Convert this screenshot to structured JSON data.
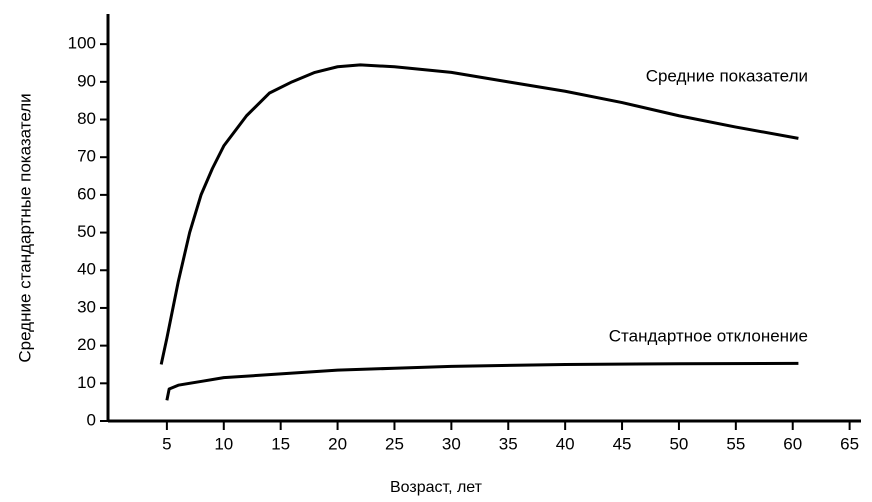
{
  "chart_data": {
    "type": "line",
    "xlabel": "Возраст,  лет",
    "ylabel": "Средние стандартные показатели",
    "xlim": [
      0,
      66
    ],
    "xticks": [
      5,
      10,
      15,
      20,
      25,
      30,
      35,
      40,
      45,
      50,
      55,
      60,
      65
    ],
    "ylim": [
      0,
      108
    ],
    "yticks": [
      0,
      10,
      20,
      30,
      40,
      50,
      60,
      70,
      80,
      90,
      100
    ],
    "series": [
      {
        "name": "Средние показатели",
        "color": "#000000",
        "x": [
          4.5,
          5,
          6,
          7,
          8,
          9,
          10,
          12,
          14,
          16,
          18,
          20,
          22,
          25,
          30,
          35,
          40,
          45,
          50,
          55,
          60.5
        ],
        "values": [
          15,
          22,
          37,
          50,
          60,
          67,
          73,
          81,
          87,
          90,
          92.5,
          94,
          94.5,
          94,
          92.5,
          90,
          87.5,
          84.5,
          81,
          78,
          75
        ]
      },
      {
        "name": "Стандартное отклонение",
        "color": "#000000",
        "x": [
          5,
          5.2,
          6,
          8,
          10,
          15,
          20,
          25,
          30,
          40,
          50,
          60.5
        ],
        "values": [
          5.5,
          8.5,
          9.5,
          10.5,
          11.5,
          12.5,
          13.5,
          14,
          14.5,
          15,
          15.2,
          15.3
        ]
      }
    ]
  }
}
